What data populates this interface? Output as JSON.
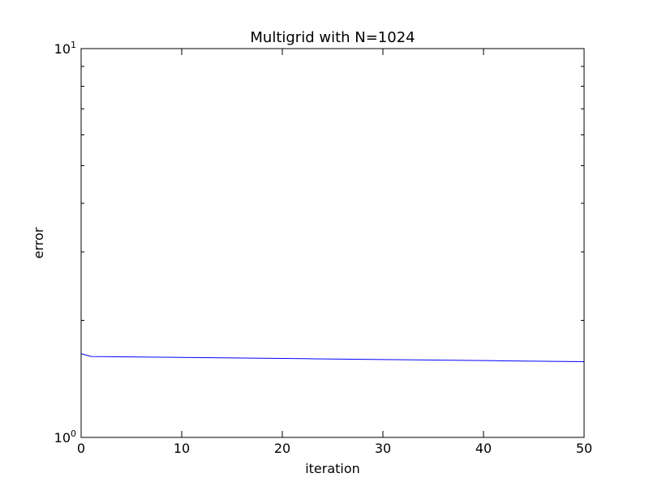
{
  "chart_data": {
    "type": "line",
    "title": "Multigrid with N=1024",
    "xlabel": "iteration",
    "ylabel": "error",
    "xlim": [
      0,
      50
    ],
    "ylim": [
      1,
      10
    ],
    "yscale": "log",
    "grid": false,
    "x_ticks": [
      "0",
      "10",
      "20",
      "30",
      "40",
      "50"
    ],
    "y_ticks": [
      {
        "base": "10",
        "exp": "0",
        "value": 1
      },
      {
        "base": "10",
        "exp": "1",
        "value": 10
      }
    ],
    "series": [
      {
        "color": "#0000ff",
        "x": [
          0,
          1,
          2,
          3,
          4,
          5,
          6,
          7,
          8,
          9,
          10,
          11,
          12,
          13,
          14,
          15,
          16,
          17,
          18,
          19,
          20,
          21,
          22,
          23,
          24,
          25,
          26,
          27,
          28,
          29,
          30,
          31,
          32,
          33,
          34,
          35,
          36,
          37,
          38,
          39,
          40,
          41,
          42,
          43,
          44,
          45,
          46,
          47,
          48,
          49,
          50
        ],
        "y": [
          1.642,
          1.615,
          1.614,
          1.613,
          1.612,
          1.611,
          1.61,
          1.609,
          1.608,
          1.607,
          1.606,
          1.605,
          1.604,
          1.603,
          1.602,
          1.601,
          1.6,
          1.599,
          1.598,
          1.597,
          1.596,
          1.595,
          1.594,
          1.593,
          1.592,
          1.591,
          1.59,
          1.589,
          1.588,
          1.587,
          1.586,
          1.585,
          1.584,
          1.583,
          1.582,
          1.581,
          1.58,
          1.579,
          1.578,
          1.577,
          1.576,
          1.575,
          1.574,
          1.573,
          1.572,
          1.571,
          1.57,
          1.569,
          1.568,
          1.567,
          1.566
        ]
      }
    ]
  }
}
